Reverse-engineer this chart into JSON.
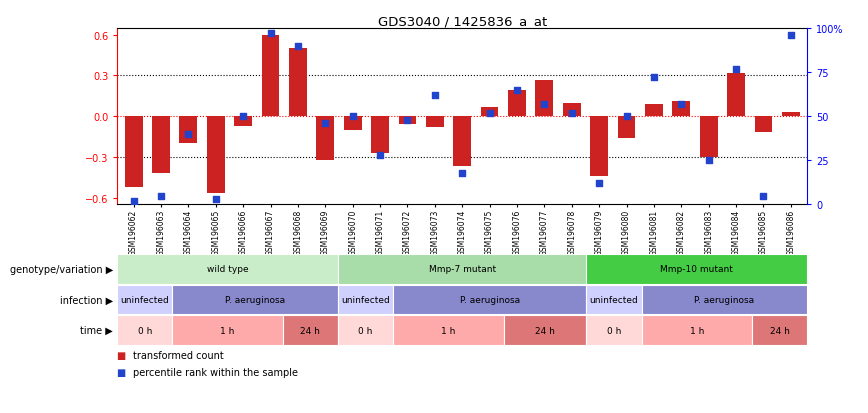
{
  "title": "GDS3040 / 1425836_a_at",
  "samples": [
    "GSM196062",
    "GSM196063",
    "GSM196064",
    "GSM196065",
    "GSM196066",
    "GSM196067",
    "GSM196068",
    "GSM196069",
    "GSM196070",
    "GSM196071",
    "GSM196072",
    "GSM196073",
    "GSM196074",
    "GSM196075",
    "GSM196076",
    "GSM196077",
    "GSM196078",
    "GSM196079",
    "GSM196080",
    "GSM196081",
    "GSM196082",
    "GSM196083",
    "GSM196084",
    "GSM196085",
    "GSM196086"
  ],
  "bar_values": [
    -0.52,
    -0.42,
    -0.2,
    -0.57,
    -0.07,
    0.6,
    0.5,
    -0.32,
    -0.1,
    -0.27,
    -0.06,
    -0.08,
    -0.37,
    0.07,
    0.19,
    0.27,
    0.1,
    -0.44,
    -0.16,
    0.09,
    0.11,
    -0.3,
    0.32,
    -0.12,
    0.03
  ],
  "blue_values": [
    2,
    5,
    40,
    3,
    50,
    97,
    90,
    46,
    50,
    28,
    48,
    62,
    18,
    52,
    65,
    57,
    52,
    12,
    50,
    72,
    57,
    25,
    77,
    5,
    96
  ],
  "bar_color": "#cc2222",
  "blue_color": "#2244cc",
  "ylim_left": [
    -0.65,
    0.65
  ],
  "ylim_right": [
    0,
    100
  ],
  "yticks_left": [
    -0.6,
    -0.3,
    0.0,
    0.3,
    0.6
  ],
  "yticks_right": [
    0,
    25,
    50,
    75,
    100
  ],
  "ytick_labels_right": [
    "0",
    "25",
    "50",
    "75",
    "100%"
  ],
  "genotype_groups": [
    {
      "label": "wild type",
      "start": 0,
      "end": 7,
      "color": "#c8edc8"
    },
    {
      "label": "Mmp-7 mutant",
      "start": 8,
      "end": 16,
      "color": "#a8dca8"
    },
    {
      "label": "Mmp-10 mutant",
      "start": 17,
      "end": 24,
      "color": "#44cc44"
    }
  ],
  "infection_groups": [
    {
      "label": "uninfected",
      "start": 0,
      "end": 1,
      "color": "#d0d0ff"
    },
    {
      "label": "P. aeruginosa",
      "start": 2,
      "end": 7,
      "color": "#8888cc"
    },
    {
      "label": "uninfected",
      "start": 8,
      "end": 9,
      "color": "#d0d0ff"
    },
    {
      "label": "P. aeruginosa",
      "start": 10,
      "end": 16,
      "color": "#8888cc"
    },
    {
      "label": "uninfected",
      "start": 17,
      "end": 18,
      "color": "#d0d0ff"
    },
    {
      "label": "P. aeruginosa",
      "start": 19,
      "end": 24,
      "color": "#8888cc"
    }
  ],
  "time_groups": [
    {
      "label": "0 h",
      "start": 0,
      "end": 1,
      "color": "#ffd8d8"
    },
    {
      "label": "1 h",
      "start": 2,
      "end": 5,
      "color": "#ffaaaa"
    },
    {
      "label": "24 h",
      "start": 6,
      "end": 7,
      "color": "#dd7777"
    },
    {
      "label": "0 h",
      "start": 8,
      "end": 9,
      "color": "#ffd8d8"
    },
    {
      "label": "1 h",
      "start": 10,
      "end": 13,
      "color": "#ffaaaa"
    },
    {
      "label": "24 h",
      "start": 14,
      "end": 16,
      "color": "#dd7777"
    },
    {
      "label": "0 h",
      "start": 17,
      "end": 18,
      "color": "#ffd8d8"
    },
    {
      "label": "1 h",
      "start": 19,
      "end": 22,
      "color": "#ffaaaa"
    },
    {
      "label": "24 h",
      "start": 23,
      "end": 24,
      "color": "#dd7777"
    }
  ],
  "row_labels": [
    "genotype/variation",
    "infection",
    "time"
  ],
  "legend_items": [
    {
      "label": "transformed count",
      "color": "#cc2222"
    },
    {
      "label": "percentile rank within the sample",
      "color": "#2244cc"
    }
  ]
}
